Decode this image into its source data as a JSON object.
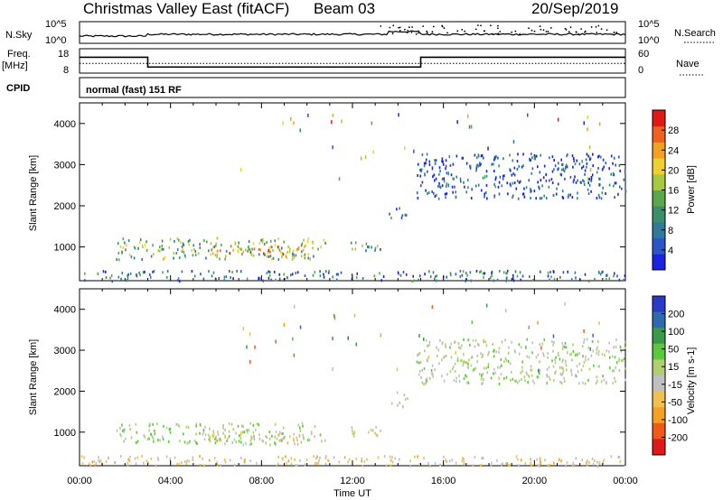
{
  "chart_data": {
    "type": "heatmap",
    "title": {
      "radar": "Christmas Valley East (fitACF)",
      "beam": "Beam 03",
      "date": "20/Sep/2019"
    },
    "xlabel": "Time UT",
    "xlim_hours": [
      0,
      24
    ],
    "xticks": [
      "00:00",
      "04:00",
      "08:00",
      "12:00",
      "16:00",
      "20:00",
      "00:00"
    ],
    "summary_panels": {
      "nsky": {
        "label": "N.Sky",
        "left_ticks": [
          "10^5",
          "10^0"
        ],
        "right_ticks": [
          "10^5",
          "10^0"
        ],
        "right_label": "N.Search"
      },
      "freq": {
        "label": "Freq.",
        "unit": "[MHz]",
        "left_ticks": [
          "18",
          "8"
        ],
        "right_ticks": [
          "60",
          "0"
        ],
        "right_label": "Nave",
        "freq_steps_mhz": [
          {
            "start_h": 0,
            "end_h": 3,
            "value": 14.5
          },
          {
            "start_h": 3,
            "end_h": 15,
            "value": 10.5
          },
          {
            "start_h": 15,
            "end_h": 24,
            "value": 14.5
          }
        ],
        "nave_level": 24
      },
      "cpid": {
        "label": "CPID",
        "text": "normal (fast) 151 RF"
      }
    },
    "panels": [
      {
        "name": "power",
        "ylabel": "Slant Range [km]",
        "yticks": [
          1000,
          2000,
          3000,
          4000
        ],
        "ylim_km": [
          180,
          4500
        ],
        "colorbar": {
          "label": "Power [dB]",
          "min": 0,
          "max": 32,
          "ticks": [
            "4",
            "8",
            "12",
            "16",
            "20",
            "24",
            "28"
          ],
          "colors": [
            "#1a24e0",
            "#2a56c8",
            "#2f7a9a",
            "#3b8e6a",
            "#5aa84a",
            "#a8c840",
            "#f0d030",
            "#f5a020",
            "#f06020",
            "#e01818"
          ]
        }
      },
      {
        "name": "velocity",
        "ylabel": "Slant Range [km]",
        "yticks": [
          1000,
          2000,
          3000,
          4000
        ],
        "ylim_km": [
          180,
          4500
        ],
        "colorbar": {
          "label": "Velocity [m s-1]",
          "min": -250,
          "max": 250,
          "ticks": [
            "200",
            "100",
            "50",
            "15",
            "-15",
            "-50",
            "-100",
            "-200"
          ],
          "colors": [
            "#e01818",
            "#f05a18",
            "#f5a020",
            "#f0c050",
            "#c0c0c0",
            "#b0d070",
            "#5cc83c",
            "#3b9a4a",
            "#2f6ab0",
            "#2a3ac8"
          ]
        }
      }
    ],
    "echo_regions": [
      {
        "t0": 1.6,
        "t1": 10.8,
        "r0": 720,
        "r1": 1250,
        "power_db": 15,
        "velocity": 30
      },
      {
        "t0": 5.5,
        "t1": 10.0,
        "r0": 800,
        "r1": 1050,
        "power_db": 24,
        "velocity": -40
      },
      {
        "t0": 11.8,
        "t1": 13.3,
        "r0": 880,
        "r1": 1150,
        "power_db": 12,
        "velocity": -30
      },
      {
        "t0": 13.6,
        "t1": 14.4,
        "r0": 1650,
        "r1": 2000,
        "power_db": 10,
        "velocity": 5
      },
      {
        "t0": 14.8,
        "t1": 24.0,
        "r0": 2200,
        "r1": 3300,
        "power_db": 5,
        "velocity": 10
      },
      {
        "t0": 0.0,
        "t1": 24.0,
        "r0": 200,
        "r1": 450,
        "power_db": 8,
        "velocity": -60
      }
    ]
  }
}
